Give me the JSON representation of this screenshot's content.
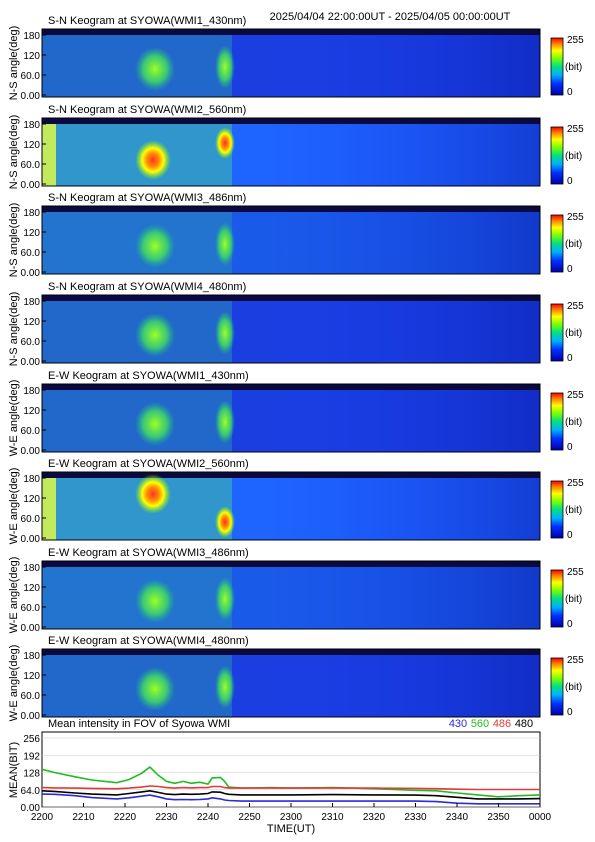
{
  "header": {
    "time_range": "2025/04/04 22:00:00UT - 2025/04/05 00:00:00UT"
  },
  "panels": [
    {
      "title": "S-N Keogram at SYOWA(WMI1_430nm)",
      "ylabel": "N-S angle(deg)"
    },
    {
      "title": "S-N Keogram at SYOWA(WMI2_560nm)",
      "ylabel": "N-S angle(deg)"
    },
    {
      "title": "S-N Keogram at SYOWA(WMI3_486nm)",
      "ylabel": "N-S angle(deg)"
    },
    {
      "title": "S-N Keogram at SYOWA(WMI4_480nm)",
      "ylabel": "N-S angle(deg)"
    },
    {
      "title": "E-W Keogram at SYOWA(WMI1_430nm)",
      "ylabel": "W-E angle(deg)"
    },
    {
      "title": "E-W Keogram at SYOWA(WMI2_560nm)",
      "ylabel": "W-E angle(deg)"
    },
    {
      "title": "E-W Keogram at SYOWA(WMI3_486nm)",
      "ylabel": "W-E angle(deg)"
    },
    {
      "title": "E-W Keogram at SYOWA(WMI4_480nm)",
      "ylabel": "W-E angle(deg)"
    }
  ],
  "keogram_yticks": [
    "180",
    "120",
    "60.0",
    "0.00"
  ],
  "colorbar": {
    "max_label": "255",
    "unit_label": "(bit)",
    "min_label": "0"
  },
  "chart_data": {
    "type": "line",
    "title": "Mean intensity in FOV of Syowa WMI",
    "xlabel": "TIME(UT)",
    "ylabel": "MEAN(BIT)",
    "xlim": [
      0,
      120
    ],
    "ylim": [
      0,
      256
    ],
    "x_tick_labels": [
      "2200",
      "2210",
      "2220",
      "2230",
      "2240",
      "2250",
      "2300",
      "2310",
      "2320",
      "2330",
      "2340",
      "2350",
      "0000"
    ],
    "y_tick_labels": [
      "256",
      "192",
      "128",
      "64.0",
      "0.00"
    ],
    "y_ticks": [
      256,
      192,
      128,
      64,
      0
    ],
    "x": [
      0,
      3,
      8,
      12,
      18,
      21,
      24,
      26,
      28,
      30,
      32,
      34,
      36,
      38,
      40,
      41,
      43,
      44,
      45,
      48,
      55,
      60,
      70,
      80,
      90,
      95,
      100,
      105,
      110,
      115,
      120
    ],
    "series": [
      {
        "name": "430",
        "color": "#2b2bd8",
        "values": [
          48,
          47,
          42,
          35,
          30,
          34,
          40,
          44,
          38,
          30,
          27,
          28,
          27,
          28,
          30,
          34,
          30,
          26,
          24,
          22,
          22,
          22,
          22,
          22,
          22,
          20,
          14,
          12,
          12,
          12,
          12
        ]
      },
      {
        "name": "560",
        "color": "#22bb22",
        "values": [
          140,
          128,
          112,
          100,
          90,
          102,
          125,
          148,
          118,
          95,
          88,
          95,
          88,
          92,
          85,
          108,
          110,
          95,
          74,
          70,
          72,
          70,
          72,
          68,
          62,
          60,
          52,
          45,
          38,
          42,
          45
        ]
      },
      {
        "name": "486",
        "color": "#e23a3a",
        "values": [
          72,
          71,
          70,
          69,
          68,
          70,
          74,
          78,
          76,
          72,
          70,
          72,
          71,
          72,
          72,
          76,
          76,
          72,
          70,
          70,
          70,
          70,
          70,
          70,
          69,
          68,
          66,
          65,
          65,
          65,
          65
        ]
      },
      {
        "name": "480",
        "color": "#000000",
        "values": [
          60,
          58,
          52,
          48,
          45,
          50,
          56,
          60,
          54,
          48,
          46,
          48,
          47,
          48,
          50,
          56,
          55,
          50,
          47,
          45,
          45,
          45,
          46,
          45,
          44,
          42,
          36,
          30,
          30,
          30,
          31
        ]
      }
    ]
  }
}
